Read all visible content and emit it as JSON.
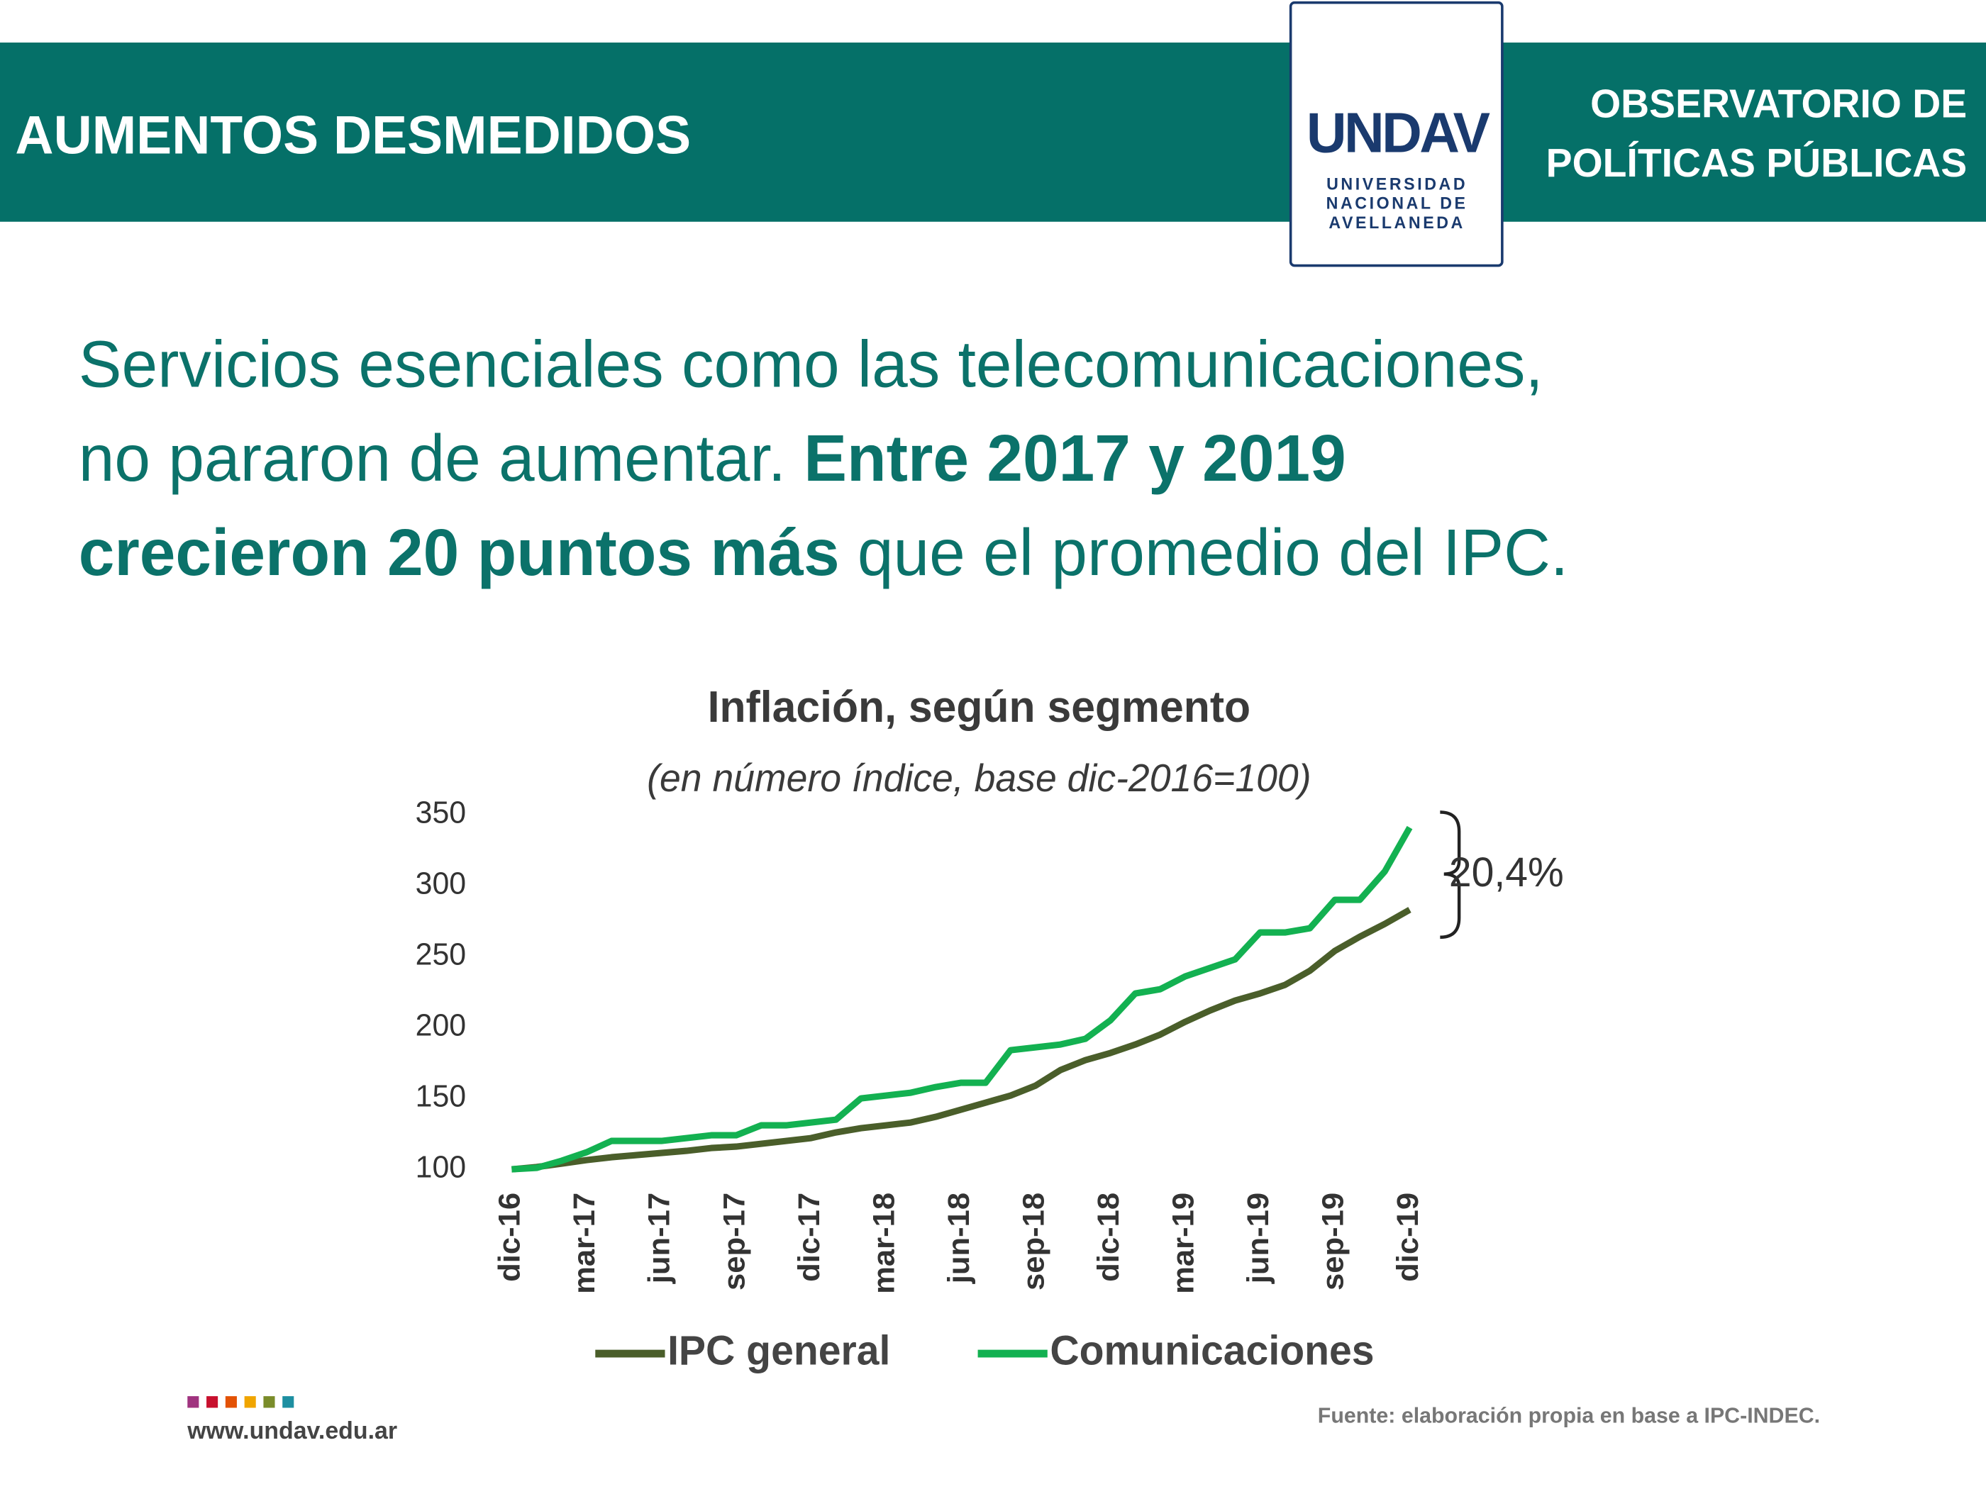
{
  "header": {
    "title": "AUMENTOS DESMEDIDOS",
    "logo": {
      "mark": "UNDAV",
      "lines": [
        "UNIVERSIDAD",
        "NACIONAL DE",
        "AVELLANEDA"
      ]
    },
    "observatory": [
      "OBSERVATORIO DE",
      "POLÍTICAS PÚBLICAS"
    ]
  },
  "headline": [
    [
      {
        "text": "Servicios esenciales como las telecomunicaciones,",
        "bold": false
      }
    ],
    [
      {
        "text": "no pararon de aumentar. ",
        "bold": false
      },
      {
        "text": "Entre 2017 y 2019",
        "bold": true
      }
    ],
    [
      {
        "text": "crecieron 20 puntos más",
        "bold": true
      },
      {
        "text": " que el promedio del IPC.",
        "bold": false
      }
    ]
  ],
  "chart_data": {
    "type": "line",
    "title": "Inflación, según segmento",
    "subtitle": "(en número índice, base dic-2016=100)",
    "categories": [
      "dic-16",
      null,
      null,
      "mar-17",
      null,
      null,
      "jun-17",
      null,
      null,
      "sep-17",
      null,
      null,
      "dic-17",
      null,
      null,
      "mar-18",
      null,
      null,
      "jun-18",
      null,
      null,
      "sep-18",
      null,
      null,
      "dic-18",
      null,
      null,
      "mar-19",
      null,
      null,
      "jun-19",
      null,
      null,
      "sep-19",
      null,
      null,
      "dic-19"
    ],
    "series": [
      {
        "name": "IPC general",
        "color": "#4a5e2a",
        "values": [
          100,
          101.6,
          104,
          106.5,
          108.5,
          110,
          111.5,
          113,
          115,
          116,
          118,
          120,
          122,
          126,
          129,
          131,
          133,
          137,
          142,
          147,
          152,
          159,
          170,
          177,
          182,
          188,
          195,
          204,
          212,
          219,
          224,
          230,
          240,
          254,
          264,
          273,
          283
        ]
      },
      {
        "name": "Comunicaciones",
        "color": "#13b151",
        "values": [
          100,
          101,
          106,
          112,
          120,
          120,
          120,
          122,
          124,
          124,
          131,
          131,
          133,
          135,
          150,
          152,
          154,
          158,
          161,
          161,
          184,
          186,
          188,
          192,
          205,
          224,
          227,
          236,
          242,
          248,
          267,
          267,
          270,
          290,
          290,
          310,
          341
        ]
      }
    ],
    "ylim": [
      100,
      350
    ],
    "yticks": [
      100,
      150,
      200,
      250,
      300,
      350
    ],
    "grid": false,
    "legend": "bottom",
    "annotation": "20,4%"
  },
  "footer": {
    "url": "www.undav.edu.ar",
    "source": "Fuente: elaboración propia en base a IPC-INDEC."
  }
}
